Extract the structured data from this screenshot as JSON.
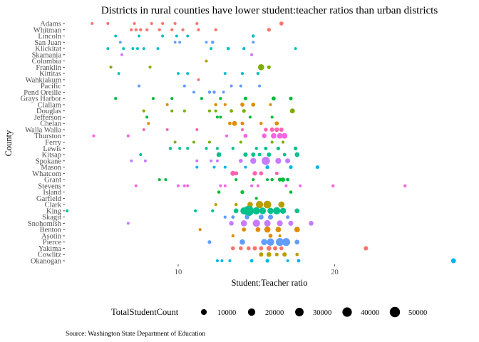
{
  "chart_data": {
    "type": "scatter",
    "title": "Districts in rural counties have lower student:teacher ratios than urban districts",
    "xlabel": "Student:Teacher ratio",
    "ylabel": "County",
    "xlim": [
      2.8,
      28.0
    ],
    "x_ticks": [
      10,
      20
    ],
    "grid": false,
    "counties": [
      "Adams",
      "Whitman",
      "Lincoln",
      "San Juan",
      "Klickitat",
      "Skamania",
      "Columbia",
      "Franklin",
      "Kittitas",
      "Wahkiakum",
      "Pacific",
      "Pend Oreille",
      "Grays Harbor",
      "Clallam",
      "Douglas",
      "Jefferson",
      "Chelan",
      "Walla Walla",
      "Thurston",
      "Ferry",
      "Lewis",
      "Kitsap",
      "Spokane",
      "Mason",
      "Whatcom",
      "Grant",
      "Stevens",
      "Island",
      "Garfield",
      "Clark",
      "King",
      "Skagit",
      "Snohomish",
      "Benton",
      "Asotin",
      "Pierce",
      "Yakima",
      "Cowlitz",
      "Okanogan"
    ],
    "county_colors": {
      "Adams": "#F8766D",
      "Whitman": "#F8766D",
      "Lincoln": "#00BFC4",
      "San Juan": "#619CFF",
      "Klickitat": "#00BFC4",
      "Skamania": "#C77CFF",
      "Columbia": "#B79F00",
      "Franklin": "#7CAE00",
      "Kittitas": "#00BFC4",
      "Wahkiakum": "#F8766D",
      "Pacific": "#619CFF",
      "Pend Oreille": "#619CFF",
      "Grays Harbor": "#00BA38",
      "Clallam": "#DE8C00",
      "Douglas": "#7CAE00",
      "Jefferson": "#00BA38",
      "Chelan": "#DE8C00",
      "Walla Walla": "#FF64B0",
      "Thurston": "#F564E3",
      "Ferry": "#7CAE00",
      "Lewis": "#00C08B",
      "Kitsap": "#00C08B",
      "Spokane": "#C77CFF",
      "Mason": "#00B4F0",
      "Whatcom": "#FF64B0",
      "Grant": "#00BA38",
      "Stevens": "#F564E3",
      "Island": "#00BA38",
      "Garfield": "#00BA38",
      "Clark": "#B79F00",
      "King": "#00C08B",
      "Skagit": "#619CFF",
      "Snohomish": "#C77CFF",
      "Benton": "#DE8C00",
      "Asotin": "#DE8C00",
      "Pierce": "#619CFF",
      "Yakima": "#F8766D",
      "Cowlitz": "#B79F00",
      "Okanogan": "#00B4F0"
    },
    "points": {
      "Adams": [
        [
          4.5,
          300
        ],
        [
          5.5,
          300
        ],
        [
          7.2,
          300
        ],
        [
          8.3,
          300
        ],
        [
          9.0,
          300
        ],
        [
          9.8,
          300
        ],
        [
          11.2,
          300
        ],
        [
          16.6,
          2500
        ]
      ],
      "Whitman": [
        [
          7.0,
          500
        ],
        [
          7.3,
          500
        ],
        [
          7.6,
          500
        ],
        [
          8.0,
          500
        ],
        [
          8.8,
          500
        ],
        [
          9.6,
          500
        ],
        [
          10.3,
          500
        ],
        [
          11.3,
          500
        ],
        [
          12.4,
          500
        ],
        [
          15.8,
          1800
        ]
      ],
      "Lincoln": [
        [
          6.0,
          200
        ],
        [
          7.5,
          200
        ],
        [
          9.0,
          200
        ],
        [
          9.9,
          200
        ],
        [
          10.6,
          200
        ],
        [
          14.8,
          600
        ]
      ],
      "San Juan": [
        [
          6.3,
          200
        ],
        [
          9.8,
          200
        ],
        [
          10.1,
          200
        ],
        [
          11.8,
          200
        ],
        [
          12.2,
          700
        ],
        [
          14.8,
          300
        ]
      ],
      "Klickitat": [
        [
          5.5,
          200
        ],
        [
          6.5,
          200
        ],
        [
          7.1,
          200
        ],
        [
          7.4,
          200
        ],
        [
          7.8,
          200
        ],
        [
          8.7,
          200
        ],
        [
          12.1,
          200
        ],
        [
          13.2,
          700
        ],
        [
          14.2,
          500
        ],
        [
          17.5,
          200
        ]
      ],
      "Skamania": [
        [
          6.4,
          300
        ],
        [
          14.7,
          500
        ]
      ],
      "Columbia": [
        [
          11.8,
          300
        ]
      ],
      "Franklin": [
        [
          5.7,
          300
        ],
        [
          8.2,
          300
        ],
        [
          15.3,
          12000
        ],
        [
          15.8,
          1500
        ]
      ],
      "Kittitas": [
        [
          6.2,
          200
        ],
        [
          10.0,
          200
        ],
        [
          10.6,
          300
        ],
        [
          13.0,
          300
        ],
        [
          14.1,
          500
        ],
        [
          15.1,
          600
        ]
      ],
      "Wahkiakum": [
        [
          11.3,
          300
        ]
      ],
      "Pacific": [
        [
          7.5,
          300
        ],
        [
          10.4,
          300
        ],
        [
          13.4,
          300
        ],
        [
          14.0,
          300
        ],
        [
          15.2,
          300
        ]
      ],
      "Pend Oreille": [
        [
          11.0,
          300
        ],
        [
          12.0,
          700
        ],
        [
          12.3,
          700
        ],
        [
          12.9,
          300
        ]
      ],
      "Grays Harbor": [
        [
          6.0,
          300
        ],
        [
          8.4,
          300
        ],
        [
          9.6,
          300
        ],
        [
          11.5,
          300
        ],
        [
          12.7,
          300
        ],
        [
          14.3,
          1500
        ],
        [
          16.1,
          2500
        ],
        [
          17.2,
          1500
        ]
      ],
      "Clallam": [
        [
          9.3,
          300
        ],
        [
          12.4,
          600
        ],
        [
          13.0,
          300
        ],
        [
          14.1,
          2500
        ],
        [
          14.8,
          2500
        ],
        [
          15.9,
          300
        ]
      ],
      "Douglas": [
        [
          7.8,
          300
        ],
        [
          9.6,
          300
        ],
        [
          10.4,
          300
        ],
        [
          12.0,
          300
        ],
        [
          12.4,
          300
        ],
        [
          13.4,
          1000
        ],
        [
          14.2,
          1500
        ],
        [
          17.3,
          5500
        ]
      ],
      "Jefferson": [
        [
          8.0,
          300
        ],
        [
          12.5,
          300
        ],
        [
          12.7,
          300
        ],
        [
          14.6,
          300
        ],
        [
          16.0,
          300
        ]
      ],
      "Chelan": [
        [
          8.1,
          300
        ],
        [
          13.3,
          1000
        ],
        [
          13.6,
          5000
        ],
        [
          14.1,
          1500
        ],
        [
          15.3,
          700
        ],
        [
          16.3,
          2500
        ]
      ],
      "Walla Walla": [
        [
          7.8,
          300
        ],
        [
          9.3,
          300
        ],
        [
          11.2,
          300
        ],
        [
          14.1,
          300
        ],
        [
          15.6,
          2000
        ],
        [
          16.0,
          3500
        ],
        [
          16.3,
          4000
        ],
        [
          16.6,
          3000
        ]
      ],
      "Thurston": [
        [
          4.6,
          300
        ],
        [
          6.8,
          300
        ],
        [
          13.1,
          300
        ],
        [
          14.3,
          2500
        ],
        [
          15.5,
          4500
        ],
        [
          16.1,
          8000
        ],
        [
          16.5,
          8500
        ],
        [
          16.8,
          9000
        ]
      ],
      "Ferry": [
        [
          9.8,
          300
        ],
        [
          11.0,
          300
        ],
        [
          12.0,
          300
        ],
        [
          14.0,
          300
        ],
        [
          16.0,
          500
        ],
        [
          16.7,
          500
        ]
      ],
      "Lewis": [
        [
          9.5,
          500
        ],
        [
          10.1,
          300
        ],
        [
          10.6,
          300
        ],
        [
          11.8,
          300
        ],
        [
          12.5,
          300
        ],
        [
          13.5,
          500
        ],
        [
          15.0,
          500
        ],
        [
          15.6,
          1200
        ],
        [
          16.4,
          1500
        ],
        [
          17.5,
          1800
        ]
      ],
      "Kitsap": [
        [
          7.6,
          300
        ],
        [
          12.6,
          5000
        ],
        [
          14.3,
          3500
        ],
        [
          14.8,
          3000
        ],
        [
          15.2,
          1000
        ],
        [
          15.8,
          3000
        ],
        [
          16.8,
          1000
        ],
        [
          17.6,
          5000
        ]
      ],
      "Spokane": [
        [
          7.0,
          300
        ],
        [
          7.9,
          300
        ],
        [
          11.2,
          300
        ],
        [
          12.1,
          300
        ],
        [
          12.5,
          300
        ],
        [
          14.0,
          2500
        ],
        [
          14.8,
          11000
        ],
        [
          15.6,
          28000
        ],
        [
          16.4,
          10000
        ],
        [
          17.0,
          6000
        ]
      ],
      "Mason": [
        [
          11.2,
          300
        ],
        [
          12.3,
          300
        ],
        [
          13.0,
          300
        ],
        [
          14.3,
          300
        ],
        [
          15.7,
          1800
        ],
        [
          17.2,
          1500
        ],
        [
          18.9,
          1500
        ]
      ],
      "Whatcom": [
        [
          13.5,
          6000
        ],
        [
          13.7,
          3000
        ],
        [
          14.9,
          4000
        ],
        [
          15.3,
          3000
        ],
        [
          16.3,
          1500
        ]
      ],
      "Grant": [
        [
          8.8,
          300
        ],
        [
          9.2,
          300
        ],
        [
          13.7,
          300
        ],
        [
          14.8,
          300
        ],
        [
          15.7,
          300
        ],
        [
          16.0,
          700
        ],
        [
          16.5,
          2000
        ],
        [
          16.7,
          3000
        ],
        [
          17.0,
          1000
        ]
      ],
      "Stevens": [
        [
          7.3,
          300
        ],
        [
          10.0,
          300
        ],
        [
          10.4,
          300
        ],
        [
          10.6,
          300
        ],
        [
          12.7,
          300
        ],
        [
          13.0,
          300
        ],
        [
          14.7,
          300
        ],
        [
          15.1,
          300
        ],
        [
          16.9,
          300
        ],
        [
          17.8,
          300
        ],
        [
          19.9,
          500
        ],
        [
          24.5,
          500
        ]
      ],
      "Island": [
        [
          12.6,
          700
        ],
        [
          14.1,
          1800
        ],
        [
          17.2,
          700
        ]
      ],
      "Garfield": [
        [
          15.0,
          300
        ]
      ],
      "Clark": [
        [
          12.4,
          300
        ],
        [
          13.7,
          700
        ],
        [
          14.6,
          8000
        ],
        [
          15.2,
          20000
        ],
        [
          15.7,
          23000
        ],
        [
          16.6,
          12000
        ]
      ],
      "King": [
        [
          2.9,
          300
        ],
        [
          11.1,
          300
        ],
        [
          12.2,
          500
        ],
        [
          13.7,
          5000
        ],
        [
          14.2,
          18000
        ],
        [
          14.5,
          50000
        ],
        [
          15.0,
          20000
        ],
        [
          15.4,
          15000
        ],
        [
          15.9,
          12000
        ],
        [
          16.3,
          20000
        ],
        [
          16.7,
          11000
        ],
        [
          17.6,
          5000
        ]
      ],
      "Skagit": [
        [
          13.0,
          500
        ],
        [
          13.5,
          1000
        ],
        [
          14.4,
          4500
        ],
        [
          15.3,
          5500
        ],
        [
          15.9,
          6000
        ],
        [
          17.0,
          1500
        ]
      ],
      "Snohomish": [
        [
          6.8,
          300
        ],
        [
          13.4,
          4500
        ],
        [
          14.2,
          12000
        ],
        [
          15.0,
          20000
        ],
        [
          15.7,
          14000
        ],
        [
          16.5,
          10000
        ],
        [
          17.2,
          6000
        ],
        [
          18.5,
          5000
        ]
      ],
      "Benton": [
        [
          11.4,
          300
        ],
        [
          14.2,
          2500
        ],
        [
          15.1,
          5000
        ],
        [
          15.7,
          12000
        ],
        [
          16.4,
          8000
        ],
        [
          17.6,
          8500
        ]
      ],
      "Asotin": [
        [
          13.5,
          500
        ],
        [
          15.9,
          2500
        ],
        [
          16.5,
          300
        ]
      ],
      "Pierce": [
        [
          12.0,
          1500
        ],
        [
          14.1,
          8000
        ],
        [
          15.5,
          12000
        ],
        [
          15.9,
          20000
        ],
        [
          16.5,
          25000
        ],
        [
          16.9,
          25000
        ],
        [
          17.6,
          5000
        ]
      ],
      "Yakima": [
        [
          13.5,
          2500
        ],
        [
          14.0,
          2500
        ],
        [
          14.5,
          2500
        ],
        [
          14.9,
          3500
        ],
        [
          15.3,
          3000
        ],
        [
          15.8,
          5000
        ],
        [
          16.2,
          3500
        ],
        [
          16.6,
          2500
        ],
        [
          22.0,
          3500
        ]
      ],
      "Cowlitz": [
        [
          15.3,
          3500
        ],
        [
          15.8,
          5000
        ],
        [
          16.3,
          1500
        ],
        [
          16.8,
          3500
        ],
        [
          17.6,
          1000
        ]
      ],
      "Okanogan": [
        [
          12.5,
          300
        ],
        [
          12.8,
          300
        ],
        [
          13.3,
          300
        ],
        [
          14.7,
          1000
        ],
        [
          15.7,
          1500
        ],
        [
          17.0,
          300
        ],
        [
          17.7,
          1000
        ],
        [
          27.6,
          5500
        ]
      ]
    },
    "legend": {
      "title": "TotalStudentCount",
      "placement": "bottom",
      "values": [
        10000,
        20000,
        30000,
        40000,
        50000
      ]
    }
  },
  "caption": "Source: Washington State Department of Education"
}
